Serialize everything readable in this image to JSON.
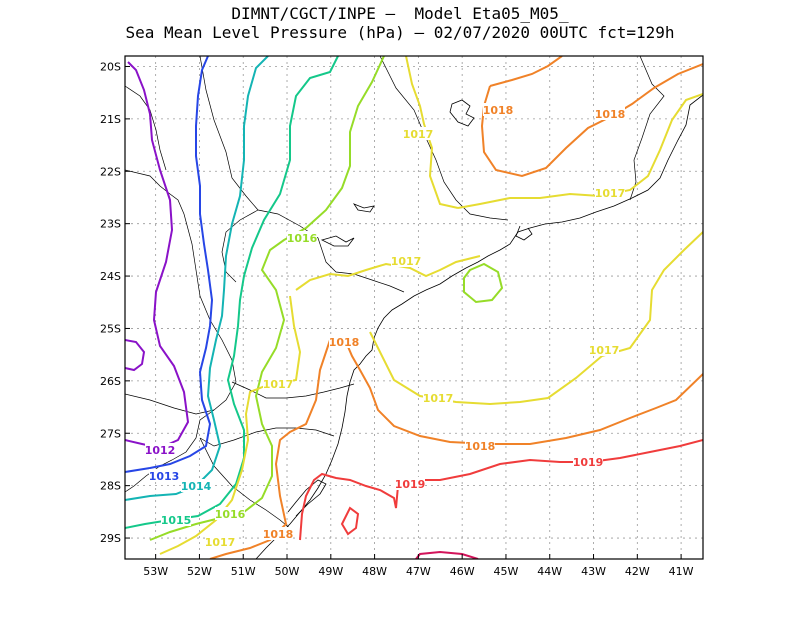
{
  "title": {
    "line1": "DIMNT/CGCT/INPE –  Model Eta05_M05_",
    "line2": "Sea Mean Level Pressure (hPa) – 02/07/2020 00UTC fct=129h"
  },
  "map": {
    "lon_range": [
      -53.7,
      -40.5
    ],
    "lat_range": [
      -29.4,
      -19.8
    ],
    "lon_ticks": [
      "53W",
      "52W",
      "51W",
      "50W",
      "49W",
      "48W",
      "47W",
      "46W",
      "45W",
      "44W",
      "43W",
      "42W",
      "41W"
    ],
    "lat_ticks": [
      "20S",
      "21S",
      "22S",
      "23S",
      "24S",
      "25S",
      "26S",
      "27S",
      "28S",
      "29S"
    ],
    "grid": true
  },
  "contours": [
    {
      "level": "1012",
      "color": "#8a12c8"
    },
    {
      "level": "1013",
      "color": "#2746e6"
    },
    {
      "level": "1014",
      "color": "#14b4b4"
    },
    {
      "level": "1015",
      "color": "#14c88a"
    },
    {
      "level": "1016",
      "color": "#96dc28"
    },
    {
      "level": "1017",
      "color": "#e6dc32"
    },
    {
      "level": "1018",
      "color": "#f08228"
    },
    {
      "level": "1019",
      "color": "#f03c3c"
    },
    {
      "level": "1020",
      "color": "#d2145a"
    }
  ],
  "contour_labels": [
    {
      "text": "1012",
      "color": "#8a12c8"
    },
    {
      "text": "1013",
      "color": "#2746e6"
    },
    {
      "text": "1014",
      "color": "#14b4b4"
    },
    {
      "text": "1015",
      "color": "#14c88a"
    },
    {
      "text": "1016",
      "color": "#96dc28"
    },
    {
      "text": "1016",
      "color": "#96dc28"
    },
    {
      "text": "1017",
      "color": "#e6dc32"
    },
    {
      "text": "1017",
      "color": "#e6dc32"
    },
    {
      "text": "1017",
      "color": "#e6dc32"
    },
    {
      "text": "1017",
      "color": "#e6dc32"
    },
    {
      "text": "1017",
      "color": "#e6dc32"
    },
    {
      "text": "1017",
      "color": "#e6dc32"
    },
    {
      "text": "1017",
      "color": "#e6dc32"
    },
    {
      "text": "1018",
      "color": "#f08228"
    },
    {
      "text": "1018",
      "color": "#f08228"
    },
    {
      "text": "1018",
      "color": "#f08228"
    },
    {
      "text": "1018",
      "color": "#f08228"
    },
    {
      "text": "1018",
      "color": "#f08228"
    },
    {
      "text": "1019",
      "color": "#f03c3c"
    },
    {
      "text": "1019",
      "color": "#f03c3c"
    }
  ]
}
